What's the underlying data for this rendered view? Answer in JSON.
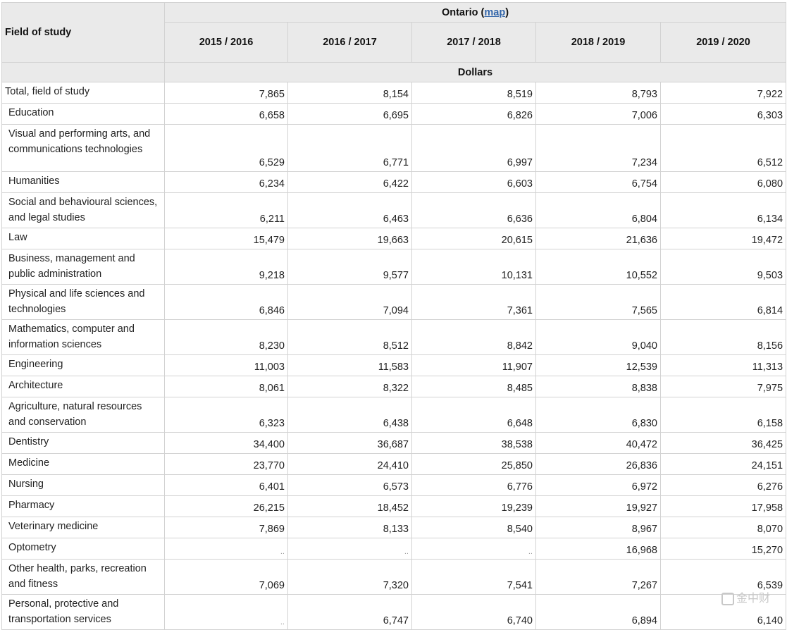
{
  "header": {
    "region_label": "Ontario",
    "region_open": "(",
    "map_link": "map",
    "region_close": ")",
    "field_label": "Field of study",
    "years": [
      "2015 / 2016",
      "2016 / 2017",
      "2017 / 2018",
      "2018 / 2019",
      "2019 / 2020"
    ],
    "unit": "Dollars"
  },
  "rows": [
    {
      "field": "Total, field of study",
      "values": [
        "7,865",
        "8,154",
        "8,519",
        "8,793",
        "7,922"
      ]
    },
    {
      "field": "Education",
      "values": [
        "6,658",
        "6,695",
        "6,826",
        "7,006",
        "6,303"
      ]
    },
    {
      "field": "Visual and performing arts, and communications technologies",
      "values": [
        "6,529",
        "6,771",
        "6,997",
        "7,234",
        "6,512"
      ]
    },
    {
      "field": "Humanities",
      "values": [
        "6,234",
        "6,422",
        "6,603",
        "6,754",
        "6,080"
      ]
    },
    {
      "field": "Social and behavioural sciences, and legal studies",
      "values": [
        "6,211",
        "6,463",
        "6,636",
        "6,804",
        "6,134"
      ]
    },
    {
      "field": "Law",
      "values": [
        "15,479",
        "19,663",
        "20,615",
        "21,636",
        "19,472"
      ]
    },
    {
      "field": "Business, management and public administration",
      "values": [
        "9,218",
        "9,577",
        "10,131",
        "10,552",
        "9,503"
      ]
    },
    {
      "field": "Physical and life sciences and technologies",
      "values": [
        "6,846",
        "7,094",
        "7,361",
        "7,565",
        "6,814"
      ]
    },
    {
      "field": "Mathematics, computer and information sciences",
      "values": [
        "8,230",
        "8,512",
        "8,842",
        "9,040",
        "8,156"
      ]
    },
    {
      "field": "Engineering",
      "values": [
        "11,003",
        "11,583",
        "11,907",
        "12,539",
        "11,313"
      ]
    },
    {
      "field": "Architecture",
      "values": [
        "8,061",
        "8,322",
        "8,485",
        "8,838",
        "7,975"
      ]
    },
    {
      "field": "Agriculture, natural resources and conservation",
      "values": [
        "6,323",
        "6,438",
        "6,648",
        "6,830",
        "6,158"
      ]
    },
    {
      "field": "Dentistry",
      "values": [
        "34,400",
        "36,687",
        "38,538",
        "40,472",
        "36,425"
      ]
    },
    {
      "field": "Medicine",
      "values": [
        "23,770",
        "24,410",
        "25,850",
        "26,836",
        "24,151"
      ]
    },
    {
      "field": "Nursing",
      "values": [
        "6,401",
        "6,573",
        "6,776",
        "6,972",
        "6,276"
      ]
    },
    {
      "field": "Pharmacy",
      "values": [
        "26,215",
        "18,452",
        "19,239",
        "19,927",
        "17,958"
      ]
    },
    {
      "field": "Veterinary medicine",
      "values": [
        "7,869",
        "8,133",
        "8,540",
        "8,967",
        "8,070"
      ]
    },
    {
      "field": "Optometry",
      "values": [
        "..",
        "..",
        "..",
        "16,968",
        "15,270"
      ]
    },
    {
      "field": "Other health, parks, recreation and fitness",
      "values": [
        "7,069",
        "7,320",
        "7,541",
        "7,267",
        "6,539"
      ]
    },
    {
      "field": "Personal, protective and transportation services",
      "values": [
        "..",
        "6,747",
        "6,740",
        "6,894",
        "6,140"
      ]
    }
  ],
  "watermark": {
    "text": "金中财"
  }
}
